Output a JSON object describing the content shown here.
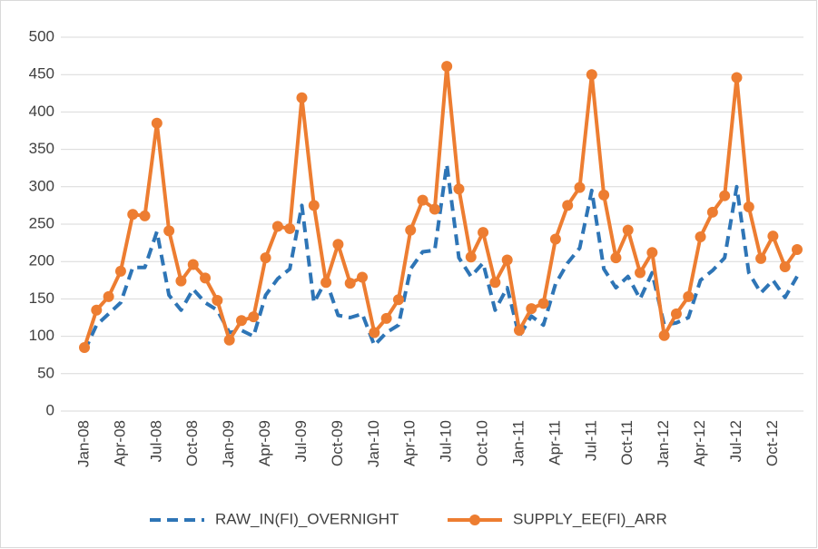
{
  "chart_data": {
    "type": "line",
    "categories": [
      "Jan-08",
      null,
      null,
      "Apr-08",
      null,
      null,
      "Jul-08",
      null,
      null,
      "Oct-08",
      null,
      null,
      "Jan-09",
      null,
      null,
      "Apr-09",
      null,
      null,
      "Jul-09",
      null,
      null,
      "Oct-09",
      null,
      null,
      "Jan-10",
      null,
      null,
      "Apr-10",
      null,
      null,
      "Jul-10",
      null,
      null,
      "Oct-10",
      null,
      null,
      "Jan-11",
      null,
      null,
      "Apr-11",
      null,
      null,
      "Jul-11",
      null,
      null,
      "Oct-11",
      null,
      null,
      "Jan-12",
      null,
      null,
      "Apr-12",
      null,
      null,
      "Jul-12",
      null,
      null,
      "Oct-12",
      null,
      null
    ],
    "series": [
      {
        "name": "RAW_IN(FI)_OVERNIGHT",
        "color": "#2e75b6",
        "style": "dashed",
        "values": [
          80,
          115,
          130,
          145,
          192,
          192,
          240,
          155,
          135,
          163,
          145,
          135,
          105,
          108,
          100,
          155,
          177,
          190,
          275,
          145,
          175,
          128,
          125,
          130,
          88,
          105,
          115,
          190,
          213,
          215,
          330,
          205,
          180,
          198,
          135,
          165,
          100,
          127,
          115,
          170,
          198,
          218,
          295,
          190,
          165,
          180,
          150,
          185,
          115,
          118,
          125,
          175,
          188,
          205,
          300,
          185,
          158,
          175,
          152,
          180
        ]
      },
      {
        "name": "SUPPLY_EE(FI)_ARR",
        "color": "#ed7d31",
        "style": "solid-markers",
        "values": [
          85,
          135,
          153,
          187,
          263,
          261,
          385,
          241,
          174,
          196,
          178,
          148,
          95,
          121,
          126,
          205,
          247,
          244,
          419,
          275,
          172,
          223,
          171,
          179,
          105,
          124,
          149,
          242,
          282,
          270,
          461,
          297,
          206,
          239,
          172,
          202,
          108,
          137,
          144,
          230,
          275,
          299,
          450,
          289,
          205,
          242,
          185,
          212,
          101,
          130,
          153,
          233,
          266,
          288,
          446,
          273,
          204,
          234,
          193,
          216
        ]
      }
    ],
    "ylim": [
      0,
      500
    ],
    "yticks": [
      0,
      50,
      100,
      150,
      200,
      250,
      300,
      350,
      400,
      450,
      500
    ],
    "grid": true,
    "legend": "bottom"
  }
}
